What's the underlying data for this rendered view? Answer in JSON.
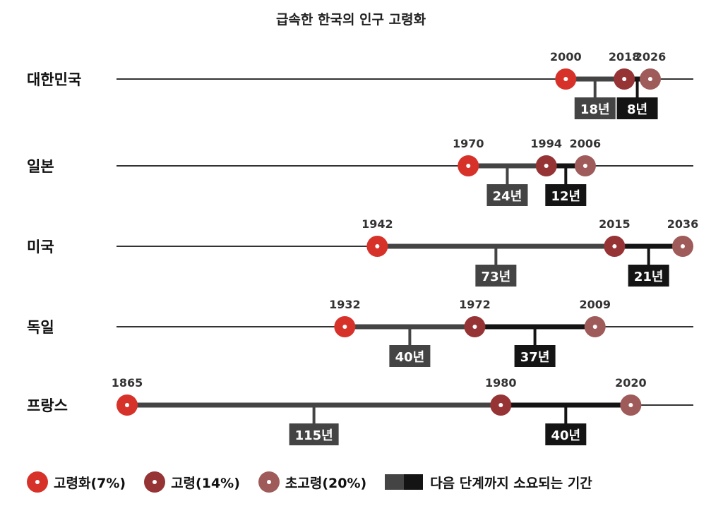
{
  "chart_data": {
    "type": "timeline",
    "title": "급속한 한국의 인구 고령화",
    "year_range": [
      1865,
      2036
    ],
    "stages": [
      {
        "key": "aging",
        "label": "고령화(7%)",
        "color": "#d7322a"
      },
      {
        "key": "aged",
        "label": "고령(14%)",
        "color": "#963335"
      },
      {
        "key": "superaged",
        "label": "초고령(20%)",
        "color": "#9e5b59"
      }
    ],
    "duration_legend": {
      "label": "다음 단계까지 소요되는 기간",
      "colors": [
        "#444444",
        "#141414"
      ]
    },
    "countries": [
      {
        "name": "대한민국",
        "years": [
          2000,
          2018,
          2026
        ],
        "durations": [
          "18년",
          "8년"
        ]
      },
      {
        "name": "일본",
        "years": [
          1970,
          1994,
          2006
        ],
        "durations": [
          "24년",
          "12년"
        ]
      },
      {
        "name": "미국",
        "years": [
          1942,
          2015,
          2036
        ],
        "durations": [
          "73년",
          "21년"
        ]
      },
      {
        "name": "독일",
        "years": [
          1932,
          1972,
          2009
        ],
        "durations": [
          "40년",
          "37년"
        ]
      },
      {
        "name": "프랑스",
        "years": [
          1865,
          1980,
          2020
        ],
        "durations": [
          "115년",
          "40년"
        ]
      }
    ]
  }
}
